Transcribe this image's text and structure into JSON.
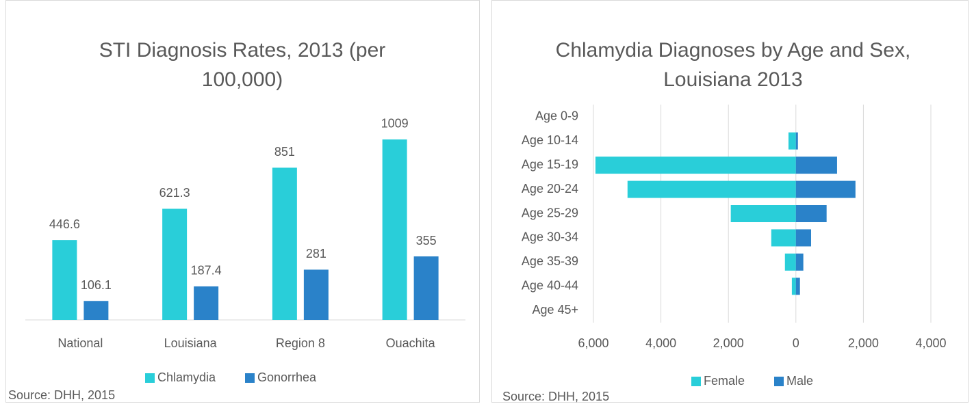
{
  "chart_data": [
    {
      "type": "bar",
      "title": "STI Diagnosis Rates, 2013 (per 100,000)",
      "categories": [
        "National",
        "Louisiana",
        "Region 8",
        "Ouachita"
      ],
      "series": [
        {
          "name": "Chlamydia",
          "color": "#29ced9",
          "values": [
            446.6,
            621.3,
            851,
            1009
          ]
        },
        {
          "name": "Gonorrhea",
          "color": "#2a82c9",
          "values": [
            106.1,
            187.4,
            281,
            355
          ]
        }
      ],
      "ylim": [
        0,
        1200
      ],
      "source": "Source: DHH, 2015"
    },
    {
      "type": "hbar",
      "title": "Chlamydia Diagnoses by Age and Sex, Louisiana 2013",
      "categories": [
        "Age 0-9",
        "Age 10-14",
        "Age 15-19",
        "Age 20-24",
        "Age 25-29",
        "Age 30-34",
        "Age 35-39",
        "Age 40-44",
        "Age 45+"
      ],
      "series": [
        {
          "name": "Female",
          "color": "#29ced9",
          "values": [
            0,
            -220,
            -5940,
            -4990,
            -1930,
            -730,
            -325,
            -120,
            0
          ]
        },
        {
          "name": "Male",
          "color": "#2a82c9",
          "values": [
            0,
            60,
            1220,
            1765,
            910,
            450,
            220,
            120,
            0
          ]
        }
      ],
      "xlim": [
        -6000,
        4000
      ],
      "xticks": [
        {
          "value": -6000,
          "label": "6,000"
        },
        {
          "value": -4000,
          "label": "4,000"
        },
        {
          "value": -2000,
          "label": "2,000"
        },
        0,
        {
          "value": 2000,
          "label": "2,000"
        },
        {
          "value": 4000,
          "label": "4,000"
        }
      ],
      "grid": true,
      "source": "Source: DHH, 2015"
    }
  ]
}
